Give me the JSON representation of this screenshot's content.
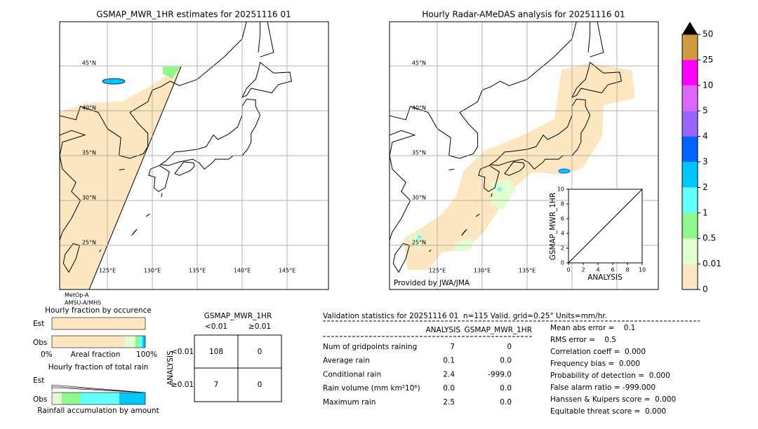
{
  "left_map": {
    "title": "GSMAP_MWR_1HR estimates for 20251116 01",
    "lat_labels": [
      "45°N",
      "40°N",
      "35°N",
      "30°N",
      "25°N"
    ],
    "lon_labels": [
      "125°E",
      "130°E",
      "135°E",
      "140°E",
      "145°E"
    ],
    "sensor_notes": [
      "MetOp-A",
      "AMSU-A/MHS"
    ]
  },
  "right_map": {
    "title": "Hourly Radar-AMeDAS analysis for 20251116 01",
    "lat_labels": [
      "45°N",
      "40°N",
      "35°N",
      "30°N",
      "25°N"
    ],
    "lon_labels": [
      "125°E",
      "130°E",
      "135°E"
    ],
    "credit": "Provided by JWA/JMA"
  },
  "scatter_inset": {
    "x_label": "ANALYSIS",
    "y_label": "GSMAP_MWR_1HR",
    "lim": [
      0,
      10
    ],
    "ticks": [
      0,
      2,
      4,
      6,
      8,
      10
    ]
  },
  "colorbar": {
    "levels": [
      0,
      0.01,
      0.5,
      1,
      2,
      3,
      4,
      5,
      10,
      25,
      50
    ],
    "colors": [
      "#fde7c0",
      "#e0fed0",
      "#90f78a",
      "#62fffb",
      "#00c8ff",
      "#0064ff",
      "#9966ff",
      "#dd66ff",
      "#ff00ff",
      "#d09a40"
    ]
  },
  "occurrence": {
    "title": "Hourly fraction by occurence",
    "rows": [
      "Est",
      "Obs"
    ],
    "axis_left": "0%",
    "axis_label": "Areal fraction",
    "axis_right": "100%"
  },
  "total_rain": {
    "title": "Hourly fraction of total rain",
    "rows": [
      "Est",
      "Obs"
    ],
    "axis_label": "Rainfall accumulation by amount"
  },
  "contingency": {
    "title": "GSMAP_MWR_1HR",
    "col_headers": [
      "<0.01",
      "≥0.01"
    ],
    "row_axis": "ANALYSIS",
    "row_headers": [
      "<0.01",
      "≥0.01"
    ],
    "cells": [
      [
        "108",
        "0"
      ],
      [
        "7",
        "0"
      ]
    ]
  },
  "validation": {
    "header": "Validation statistics for 20251116 01  n=115 Valid. grid=0.25° Units=mm/hr.",
    "columns": [
      "ANALYSIS",
      "GSMAP_MWR_1HR"
    ],
    "rows": [
      [
        "Num of gridpoints raining",
        "7",
        "0"
      ],
      [
        "Average rain",
        "0.1",
        "0.0"
      ],
      [
        "Conditional rain",
        "2.4",
        "-999.0"
      ],
      [
        "Rain volume (mm km²10⁶)",
        "0.0",
        "0.0"
      ],
      [
        "Maximum rain",
        "2.5",
        "0.0"
      ]
    ],
    "scores": [
      "Mean abs error =    0.1",
      "RMS error =    0.5",
      "Correlation coeff =  0.000",
      "Frequency bias =  0.000",
      "Probability of detection =  0.000",
      "False alarm ratio = -999.000",
      "Hanssen & Kuipers score =  0.000",
      "Equitable threat score =  0.000"
    ]
  }
}
